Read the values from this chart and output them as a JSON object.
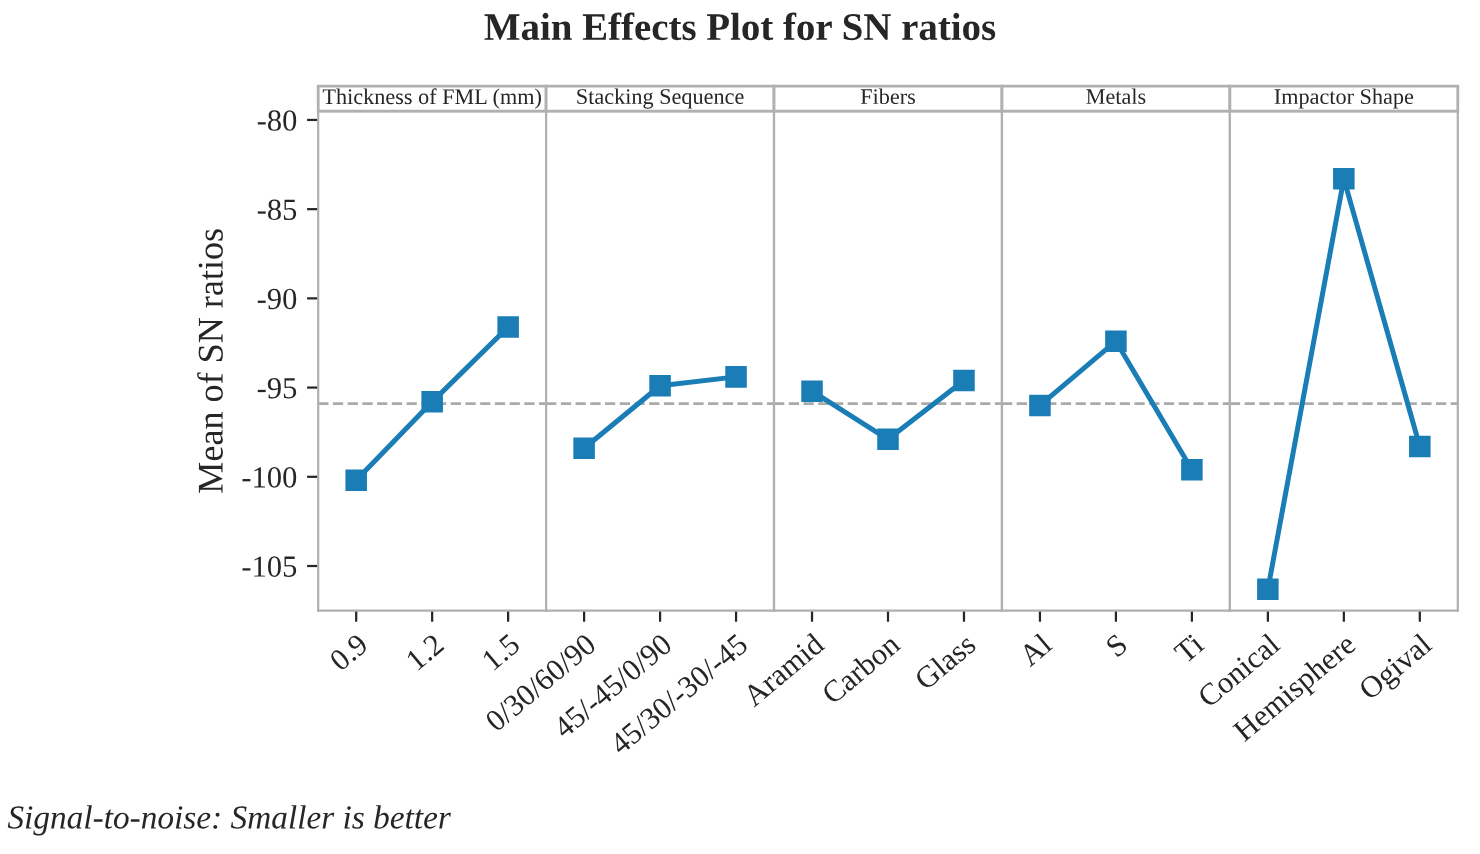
{
  "chart_data": [
    {
      "type": "line",
      "title": "Main Effects Plot for SN ratios",
      "xlabel": "Thickness of FML (mm)",
      "ylabel": "Mean of SN ratios",
      "annotations": [
        "Signal-to-noise: Smaller is better"
      ],
      "categories": [
        "0.9",
        "1.2",
        "1.5"
      ],
      "series": [
        {
          "color": "#1a7db5",
          "values": [
            -100.2,
            -95.8,
            -91.6
          ]
        }
      ],
      "ylim": [
        -107.5,
        -79.5
      ],
      "yticks": [
        -80,
        -85,
        -90,
        -95,
        -100,
        -105
      ],
      "marker": "square",
      "ref_lines": [
        {
          "axis": "y",
          "value": -95.9,
          "color": "#aaaaaa",
          "line_style": "dashed"
        }
      ]
    },
    {
      "type": "line",
      "xlabel": "Stacking Sequence",
      "categories": [
        "0/30/60/90",
        "45/-45/0/90",
        "45/30/-30/-45"
      ],
      "series": [
        {
          "color": "#1a7db5",
          "values": [
            -98.4,
            -94.9,
            -94.4
          ]
        }
      ],
      "ylim": [
        -107.5,
        -79.5
      ],
      "tick_labels": "x",
      "marker": "square",
      "ref_lines": [
        {
          "axis": "y",
          "value": -95.9,
          "color": "#aaaaaa",
          "line_style": "dashed"
        }
      ]
    },
    {
      "type": "line",
      "xlabel": "Fibers",
      "categories": [
        "Aramid",
        "Carbon",
        "Glass"
      ],
      "series": [
        {
          "color": "#1a7db5",
          "values": [
            -95.2,
            -97.9,
            -94.6
          ]
        }
      ],
      "ylim": [
        -107.5,
        -79.5
      ],
      "tick_labels": "x",
      "marker": "square",
      "ref_lines": [
        {
          "axis": "y",
          "value": -95.9,
          "color": "#aaaaaa",
          "line_style": "dashed"
        }
      ]
    },
    {
      "type": "line",
      "xlabel": "Metals",
      "categories": [
        "Al",
        "S",
        "Ti"
      ],
      "series": [
        {
          "color": "#1a7db5",
          "values": [
            -96.0,
            -92.4,
            -99.6
          ]
        }
      ],
      "ylim": [
        -107.5,
        -79.5
      ],
      "tick_labels": "x",
      "marker": "square",
      "ref_lines": [
        {
          "axis": "y",
          "value": -95.9,
          "color": "#aaaaaa",
          "line_style": "dashed"
        }
      ]
    },
    {
      "type": "line",
      "xlabel": "Impactor Shape",
      "categories": [
        "Conical",
        "Hemisphere",
        "Ogival"
      ],
      "series": [
        {
          "color": "#1a7db5",
          "values": [
            -106.3,
            -83.3,
            -98.3
          ]
        }
      ],
      "ylim": [
        -107.5,
        -79.5
      ],
      "tick_labels": "x",
      "marker": "square",
      "ref_lines": [
        {
          "axis": "y",
          "value": -95.9,
          "color": "#aaaaaa",
          "line_style": "dashed"
        }
      ]
    }
  ]
}
